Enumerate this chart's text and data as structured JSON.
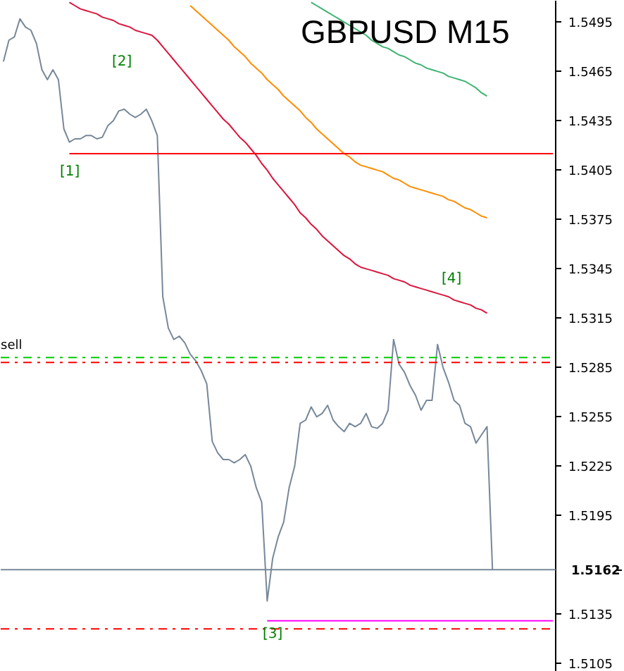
{
  "chart_data": {
    "type": "line",
    "title": "GBPUSD M15",
    "categories": [
      null,
      null,
      null,
      null,
      null,
      null,
      null,
      null,
      null,
      null,
      null,
      null,
      null,
      null,
      null,
      null,
      null,
      null,
      null,
      null,
      null,
      null,
      null,
      null,
      null,
      null,
      null,
      null,
      null,
      null,
      null,
      null,
      null,
      null,
      null,
      null,
      null,
      null,
      null,
      null,
      null,
      null,
      null,
      null,
      null,
      null,
      null,
      null,
      null,
      null,
      null,
      null,
      null,
      null,
      null,
      null,
      null,
      null,
      null,
      null,
      null,
      null,
      null,
      null,
      null,
      null,
      null,
      null,
      null,
      null,
      null,
      null,
      null,
      null,
      null,
      null,
      null,
      null,
      null,
      null,
      null,
      null,
      null,
      null,
      null,
      null,
      null,
      null,
      null,
      null,
      null,
      null,
      null,
      null,
      null,
      null,
      null,
      null,
      null,
      null,
      null
    ],
    "series": [
      {
        "color": "#778899",
        "values": [
          1.5471,
          1.5484,
          1.5486,
          1.5497,
          1.5492,
          1.549,
          1.5482,
          1.5466,
          1.546,
          1.5466,
          1.546,
          1.543,
          1.5422,
          1.5424,
          1.5424,
          1.5426,
          1.5426,
          1.5424,
          1.5425,
          1.5432,
          1.5435,
          1.5441,
          1.5442,
          1.5439,
          1.5437,
          1.5439,
          1.5442,
          1.5435,
          1.5426,
          1.5328,
          1.5309,
          1.5302,
          1.5304,
          1.53,
          1.5293,
          1.5289,
          1.5283,
          1.5275,
          1.524,
          1.5233,
          1.5229,
          1.5229,
          1.5227,
          1.5229,
          1.5232,
          1.5225,
          1.5212,
          1.5203,
          1.5143,
          1.5169,
          1.5182,
          1.5191,
          1.5212,
          1.5225,
          1.5251,
          1.5253,
          1.5261,
          1.5255,
          1.5257,
          1.5262,
          1.5253,
          1.5249,
          1.5246,
          1.5251,
          1.5249,
          1.5251,
          1.5257,
          1.5249,
          1.5248,
          1.5251,
          1.5259,
          1.5302,
          1.5287,
          1.5282,
          1.5274,
          1.5268,
          1.5259,
          1.5265,
          1.5265,
          1.5299,
          1.5285,
          1.5276,
          1.5265,
          1.5262,
          1.5251,
          1.5249,
          1.5239,
          1.5244,
          1.5249,
          1.5162,
          null,
          null,
          null,
          null,
          null,
          null,
          null,
          null,
          null,
          null,
          null
        ]
      },
      {
        "color": "#dc143c",
        "values": [
          null,
          null,
          null,
          null,
          null,
          null,
          null,
          null,
          null,
          null,
          null,
          null,
          1.5507,
          1.5505,
          1.5503,
          1.5502,
          1.5501,
          1.55,
          1.5498,
          1.5497,
          1.5496,
          1.5494,
          1.5493,
          1.5492,
          1.549,
          1.5489,
          1.5488,
          1.5487,
          1.5484,
          1.548,
          1.5476,
          1.5472,
          1.5468,
          1.5464,
          1.546,
          1.5456,
          1.5452,
          1.5448,
          1.5444,
          1.544,
          1.5436,
          1.5433,
          1.5429,
          1.5425,
          1.5422,
          1.5418,
          1.5414,
          1.5409,
          1.5405,
          1.54,
          1.5396,
          1.5392,
          1.5388,
          1.5384,
          1.5379,
          1.5376,
          1.5372,
          1.5369,
          1.5365,
          1.5362,
          1.5359,
          1.5356,
          1.5353,
          1.5351,
          1.5348,
          1.5346,
          1.5345,
          1.5344,
          1.5343,
          1.5342,
          1.5341,
          1.5339,
          1.5338,
          1.5337,
          1.5335,
          1.5334,
          1.5333,
          1.5332,
          1.5331,
          1.533,
          1.5329,
          1.5328,
          1.5326,
          1.5325,
          1.5324,
          1.5323,
          1.5321,
          1.532,
          1.5318,
          null,
          null,
          null,
          null,
          null,
          null,
          null,
          null,
          null,
          null,
          null,
          null
        ]
      },
      {
        "color": "#ff8c00",
        "values": [
          null,
          null,
          null,
          null,
          null,
          null,
          null,
          null,
          null,
          null,
          null,
          null,
          null,
          null,
          null,
          null,
          null,
          null,
          null,
          null,
          null,
          null,
          null,
          null,
          null,
          null,
          null,
          null,
          null,
          null,
          null,
          null,
          null,
          null,
          1.5505,
          1.5502,
          1.5499,
          1.5496,
          1.5493,
          1.549,
          1.5487,
          1.5484,
          1.548,
          1.5477,
          1.5474,
          1.547,
          1.5467,
          1.5464,
          1.546,
          1.5457,
          1.5454,
          1.545,
          1.5447,
          1.5444,
          1.5441,
          1.5437,
          1.5434,
          1.543,
          1.5427,
          1.5424,
          1.5421,
          1.5418,
          1.5415,
          1.5413,
          1.541,
          1.5408,
          1.5407,
          1.5406,
          1.5405,
          1.5404,
          1.5402,
          1.54,
          1.5399,
          1.5397,
          1.5395,
          1.5394,
          1.5393,
          1.5392,
          1.5391,
          1.539,
          1.5389,
          1.5387,
          1.5386,
          1.5384,
          1.5382,
          1.5381,
          1.5379,
          1.5377,
          1.5376,
          null,
          null,
          null,
          null,
          null,
          null,
          null,
          null,
          null,
          null,
          null,
          null
        ]
      },
      {
        "color": "#3cb371",
        "values": [
          null,
          null,
          null,
          null,
          null,
          null,
          null,
          null,
          null,
          null,
          null,
          null,
          null,
          null,
          null,
          null,
          null,
          null,
          null,
          null,
          null,
          null,
          null,
          null,
          null,
          null,
          null,
          null,
          null,
          null,
          null,
          null,
          null,
          null,
          null,
          null,
          null,
          null,
          null,
          null,
          null,
          null,
          null,
          null,
          null,
          null,
          null,
          null,
          null,
          null,
          null,
          null,
          null,
          null,
          null,
          null,
          1.5507,
          1.5505,
          1.5503,
          1.5501,
          1.5499,
          1.5497,
          1.5495,
          1.5493,
          1.5491,
          1.5489,
          1.5487,
          1.5484,
          1.5482,
          1.548,
          1.5479,
          1.5477,
          1.5475,
          1.5474,
          1.5472,
          1.547,
          1.5469,
          1.5467,
          1.5466,
          1.5465,
          1.5464,
          1.5462,
          1.5461,
          1.546,
          1.5459,
          1.5457,
          1.5455,
          1.5452,
          1.545,
          null,
          null,
          null,
          null,
          null,
          null,
          null,
          null,
          null,
          null,
          null,
          null
        ]
      },
      {
        "color": "#ff0000",
        "values": [
          null,
          null,
          null,
          null,
          null,
          null,
          null,
          null,
          null,
          null,
          null,
          null,
          1.5415,
          1.5415,
          1.5415,
          1.5415,
          1.5415,
          1.5415,
          1.5415,
          1.5415,
          1.5415,
          1.5415,
          1.5415,
          1.5415,
          1.5415,
          1.5415,
          1.5415,
          1.5415,
          1.5415,
          1.5415,
          1.5415,
          1.5415,
          1.5415,
          1.5415,
          1.5415,
          1.5415,
          1.5415,
          1.5415,
          1.5415,
          1.5415,
          1.5415,
          1.5415,
          1.5415,
          1.5415,
          1.5415,
          1.5415,
          1.5415,
          1.5415,
          1.5415,
          1.5415,
          1.5415,
          1.5415,
          1.5415,
          1.5415,
          1.5415,
          1.5415,
          1.5415,
          1.5415,
          1.5415,
          1.5415,
          1.5415,
          1.5415,
          1.5415,
          1.5415,
          1.5415,
          1.5415,
          1.5415,
          1.5415,
          1.5415,
          1.5415,
          1.5415,
          1.5415,
          1.5415,
          1.5415,
          1.5415,
          1.5415,
          1.5415,
          1.5415,
          1.5415,
          1.5415,
          1.5415,
          1.5415,
          1.5415,
          1.5415,
          1.5415,
          1.5415,
          1.5415,
          1.5415,
          1.5415,
          1.5415,
          1.5415,
          1.5415,
          1.5415,
          1.5415,
          1.5415,
          1.5415,
          1.5415,
          1.5415,
          1.5415,
          1.5415,
          1.5415
        ]
      },
      {
        "color": "#ff00ff",
        "values": [
          null,
          null,
          null,
          null,
          null,
          null,
          null,
          null,
          null,
          null,
          null,
          null,
          null,
          null,
          null,
          null,
          null,
          null,
          null,
          null,
          null,
          null,
          null,
          null,
          null,
          null,
          null,
          null,
          null,
          null,
          null,
          null,
          null,
          null,
          null,
          null,
          null,
          null,
          null,
          null,
          null,
          null,
          null,
          null,
          null,
          null,
          null,
          null,
          1.5131,
          1.5131,
          1.5131,
          1.5131,
          1.5131,
          1.5131,
          1.5131,
          1.5131,
          1.5131,
          1.5131,
          1.5131,
          1.5131,
          1.5131,
          1.5131,
          1.5131,
          1.5131,
          1.5131,
          1.5131,
          1.5131,
          1.5131,
          1.5131,
          1.5131,
          1.5131,
          1.5131,
          1.5131,
          1.5131,
          1.5131,
          1.5131,
          1.5131,
          1.5131,
          1.5131,
          1.5131,
          1.5131,
          1.5131,
          1.5131,
          1.5131,
          1.5131,
          1.5131,
          1.5131,
          1.5131,
          1.5131,
          1.5131,
          1.5131,
          1.5131,
          1.5131,
          1.5131,
          1.5131,
          1.5131,
          1.5131,
          1.5131,
          1.5131,
          1.5131,
          1.5131
        ]
      }
    ],
    "ylim": [
      1.51,
      1.5508
    ],
    "yticks": [
      1.5495,
      1.5465,
      1.5435,
      1.5405,
      1.5375,
      1.5345,
      1.5315,
      1.5285,
      1.5255,
      1.5225,
      1.5195,
      1.5135,
      1.5105
    ],
    "ref_lines": [
      {
        "axis": "y",
        "value": 1.5291,
        "label": "sell",
        "color": "#00cc00",
        "line_style": "dashed"
      },
      {
        "axis": "y",
        "value": 1.5288,
        "color": "#ff0000",
        "line_style": "dashed"
      },
      {
        "axis": "y",
        "value": 1.5162,
        "label": "1.5162",
        "color": "#778899",
        "line_style": "solid"
      },
      {
        "axis": "y",
        "value": 1.5126,
        "color": "#ff0000",
        "line_style": "dashed"
      }
    ],
    "annotations": [
      "[1]",
      "[2]",
      "[3]",
      "[4]"
    ],
    "tick_labels": "y",
    "grid": false,
    "line_style": "solid",
    "marker": "none"
  }
}
